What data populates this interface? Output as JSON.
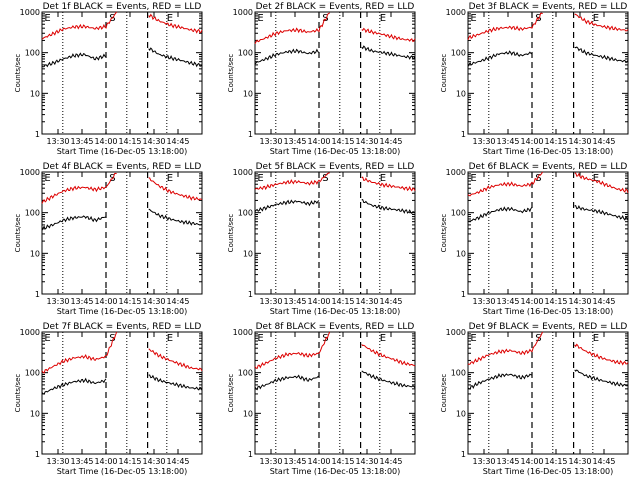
{
  "figure": {
    "background": "#ffffff",
    "axis_color": "#000000",
    "events_color": "#000000",
    "lld_color": "#dd0000"
  },
  "chart_data": [
    {
      "type": "line",
      "title": "Det 1f BLACK = Events, RED = LLD",
      "ylabel": "Counts/sec",
      "xlabel": "Start Time (16-Dec-05 13:18:00)",
      "x_ticklabels": [
        "13:30",
        "13:45",
        "14:00",
        "14:15",
        "14:30",
        "14:45"
      ],
      "y_ticklabels": [
        "1",
        "10",
        "100",
        "1000"
      ],
      "xlim": [
        13.3,
        14.9
      ],
      "ylim": [
        1,
        1000
      ],
      "markers": [
        "E",
        "S",
        "E"
      ],
      "series": [
        {
          "name": "Events",
          "color": "#000000",
          "values": [
            45,
            55,
            70,
            85,
            90,
            70,
            85,
            null,
            null,
            null,
            130,
            90,
            75,
            65,
            55,
            48
          ]
        },
        {
          "name": "LLD",
          "color": "#dd0000",
          "values": [
            220,
            290,
            380,
            430,
            440,
            390,
            440,
            1000,
            null,
            null,
            850,
            600,
            480,
            420,
            360,
            330
          ]
        }
      ]
    },
    {
      "type": "line",
      "title": "Det 2f BLACK = Events, RED = LLD",
      "ylabel": "Counts/sec",
      "xlabel": "Start Time (16-Dec-05 13:18:00)",
      "x_ticklabels": [
        "13:30",
        "13:45",
        "14:00",
        "14:15",
        "14:30",
        "14:45"
      ],
      "y_ticklabels": [
        "1",
        "10",
        "100",
        "1000"
      ],
      "xlim": [
        13.3,
        14.9
      ],
      "ylim": [
        1,
        1000
      ],
      "markers": [
        "E",
        "S",
        "E"
      ],
      "series": [
        {
          "name": "Events",
          "color": "#000000",
          "values": [
            55,
            70,
            90,
            105,
            110,
            95,
            110,
            null,
            null,
            null,
            140,
            110,
            100,
            90,
            80,
            75
          ]
        },
        {
          "name": "LLD",
          "color": "#dd0000",
          "values": [
            180,
            230,
            300,
            350,
            360,
            320,
            360,
            1000,
            null,
            null,
            380,
            320,
            280,
            240,
            210,
            200
          ]
        }
      ]
    },
    {
      "type": "line",
      "title": "Det 3f BLACK = Events, RED = LLD",
      "ylabel": "Counts/sec",
      "xlabel": "Start Time (16-Dec-05 13:18:00)",
      "x_ticklabels": [
        "13:30",
        "13:45",
        "14:00",
        "14:15",
        "14:30",
        "14:45"
      ],
      "y_ticklabels": [
        "1",
        "10",
        "100",
        "1000"
      ],
      "xlim": [
        13.3,
        14.9
      ],
      "ylim": [
        1,
        1000
      ],
      "markers": [
        "E",
        "S",
        "E"
      ],
      "series": [
        {
          "name": "Events",
          "color": "#000000",
          "values": [
            50,
            60,
            75,
            95,
            100,
            85,
            100,
            null,
            null,
            null,
            140,
            100,
            85,
            75,
            65,
            60
          ]
        },
        {
          "name": "LLD",
          "color": "#dd0000",
          "values": [
            230,
            280,
            350,
            400,
            420,
            380,
            420,
            1000,
            null,
            null,
            900,
            600,
            480,
            420,
            380,
            350
          ]
        }
      ]
    },
    {
      "type": "line",
      "title": "Det 4f BLACK = Events, RED = LLD",
      "ylabel": "Counts/sec",
      "xlabel": "Start Time (16-Dec-05 13:18:00)",
      "x_ticklabels": [
        "13:30",
        "13:45",
        "14:00",
        "14:15",
        "14:30",
        "14:45"
      ],
      "y_ticklabels": [
        "1",
        "10",
        "100",
        "1000"
      ],
      "xlim": [
        13.3,
        14.9
      ],
      "ylim": [
        1,
        1000
      ],
      "markers": [
        "E",
        "S",
        "E"
      ],
      "series": [
        {
          "name": "Events",
          "color": "#000000",
          "values": [
            40,
            50,
            65,
            75,
            80,
            65,
            80,
            null,
            null,
            null,
            120,
            85,
            70,
            60,
            55,
            50
          ]
        },
        {
          "name": "LLD",
          "color": "#dd0000",
          "values": [
            180,
            250,
            340,
            400,
            420,
            370,
            420,
            1000,
            null,
            null,
            700,
            450,
            330,
            270,
            230,
            210
          ]
        }
      ]
    },
    {
      "type": "line",
      "title": "Det 5f BLACK = Events, RED = LLD",
      "ylabel": "Counts/sec",
      "xlabel": "Start Time (16-Dec-05 13:18:00)",
      "x_ticklabels": [
        "13:30",
        "13:45",
        "14:00",
        "14:15",
        "14:30",
        "14:45"
      ],
      "y_ticklabels": [
        "1",
        "10",
        "100",
        "1000"
      ],
      "xlim": [
        13.3,
        14.9
      ],
      "ylim": [
        1,
        1000
      ],
      "markers": [
        "E",
        "S",
        "E"
      ],
      "series": [
        {
          "name": "Events",
          "color": "#000000",
          "values": [
            110,
            130,
            160,
            180,
            190,
            165,
            190,
            null,
            null,
            null,
            200,
            150,
            130,
            120,
            110,
            100
          ]
        },
        {
          "name": "LLD",
          "color": "#dd0000",
          "values": [
            380,
            420,
            500,
            560,
            580,
            520,
            580,
            1000,
            null,
            null,
            700,
            560,
            480,
            440,
            400,
            370
          ]
        }
      ]
    },
    {
      "type": "line",
      "title": "Det 6f BLACK = Events, RED = LLD",
      "ylabel": "Counts/sec",
      "xlabel": "Start Time (16-Dec-05 13:18:00)",
      "x_ticklabels": [
        "13:30",
        "13:45",
        "14:00",
        "14:15",
        "14:30",
        "14:45"
      ],
      "y_ticklabels": [
        "1",
        "10",
        "100",
        "1000"
      ],
      "xlim": [
        13.3,
        14.9
      ],
      "ylim": [
        1,
        1000
      ],
      "markers": [
        "E",
        "S",
        "E"
      ],
      "series": [
        {
          "name": "Events",
          "color": "#000000",
          "values": [
            60,
            75,
            100,
            120,
            125,
            105,
            125,
            null,
            null,
            null,
            140,
            120,
            110,
            95,
            80,
            70
          ]
        },
        {
          "name": "LLD",
          "color": "#dd0000",
          "values": [
            260,
            320,
            420,
            490,
            510,
            450,
            510,
            1000,
            null,
            null,
            900,
            700,
            600,
            480,
            380,
            340
          ]
        }
      ]
    },
    {
      "type": "line",
      "title": "Det 7f BLACK = Events, RED = LLD",
      "ylabel": "Counts/sec",
      "xlabel": "Start Time (16-Dec-05 13:18:00)",
      "x_ticklabels": [
        "13:30",
        "13:45",
        "14:00",
        "14:15",
        "14:30",
        "14:45"
      ],
      "y_ticklabels": [
        "1",
        "10",
        "100",
        "1000"
      ],
      "xlim": [
        13.3,
        14.9
      ],
      "ylim": [
        1,
        1000
      ],
      "markers": [
        "E",
        "S",
        "E"
      ],
      "series": [
        {
          "name": "Events",
          "color": "#000000",
          "values": [
            30,
            40,
            50,
            60,
            65,
            55,
            65,
            null,
            null,
            null,
            85,
            65,
            55,
            48,
            42,
            40
          ]
        },
        {
          "name": "LLD",
          "color": "#dd0000",
          "values": [
            100,
            140,
            190,
            230,
            250,
            210,
            250,
            1000,
            null,
            null,
            380,
            260,
            200,
            160,
            130,
            120
          ]
        }
      ]
    },
    {
      "type": "line",
      "title": "Det 8f BLACK = Events, RED = LLD",
      "ylabel": "Counts/sec",
      "xlabel": "Start Time (16-Dec-05 13:18:00)",
      "x_ticklabels": [
        "13:30",
        "13:45",
        "14:00",
        "14:15",
        "14:30",
        "14:45"
      ],
      "y_ticklabels": [
        "1",
        "10",
        "100",
        "1000"
      ],
      "xlim": [
        13.3,
        14.9
      ],
      "ylim": [
        1,
        1000
      ],
      "markers": [
        "E",
        "S",
        "E"
      ],
      "series": [
        {
          "name": "Events",
          "color": "#000000",
          "values": [
            40,
            50,
            65,
            75,
            80,
            65,
            80,
            null,
            null,
            null,
            110,
            80,
            65,
            55,
            48,
            45
          ]
        },
        {
          "name": "LLD",
          "color": "#dd0000",
          "values": [
            130,
            170,
            230,
            280,
            300,
            260,
            300,
            1000,
            null,
            null,
            500,
            340,
            260,
            210,
            170,
            150
          ]
        }
      ]
    },
    {
      "type": "line",
      "title": "Det 9f BLACK = Events, RED = LLD",
      "ylabel": "Counts/sec",
      "xlabel": "Start Time (16-Dec-05 13:18:00)",
      "x_ticklabels": [
        "13:30",
        "13:45",
        "14:00",
        "14:15",
        "14:30",
        "14:45"
      ],
      "y_ticklabels": [
        "1",
        "10",
        "100",
        "1000"
      ],
      "xlim": [
        13.3,
        14.9
      ],
      "ylim": [
        1,
        1000
      ],
      "markers": [
        "E",
        "S",
        "E"
      ],
      "series": [
        {
          "name": "Events",
          "color": "#000000",
          "values": [
            40,
            55,
            70,
            85,
            90,
            75,
            90,
            null,
            null,
            null,
            120,
            85,
            70,
            60,
            52,
            48
          ]
        },
        {
          "name": "LLD",
          "color": "#dd0000",
          "values": [
            160,
            210,
            280,
            330,
            350,
            300,
            350,
            1000,
            null,
            null,
            500,
            340,
            260,
            210,
            180,
            170
          ]
        }
      ]
    }
  ]
}
